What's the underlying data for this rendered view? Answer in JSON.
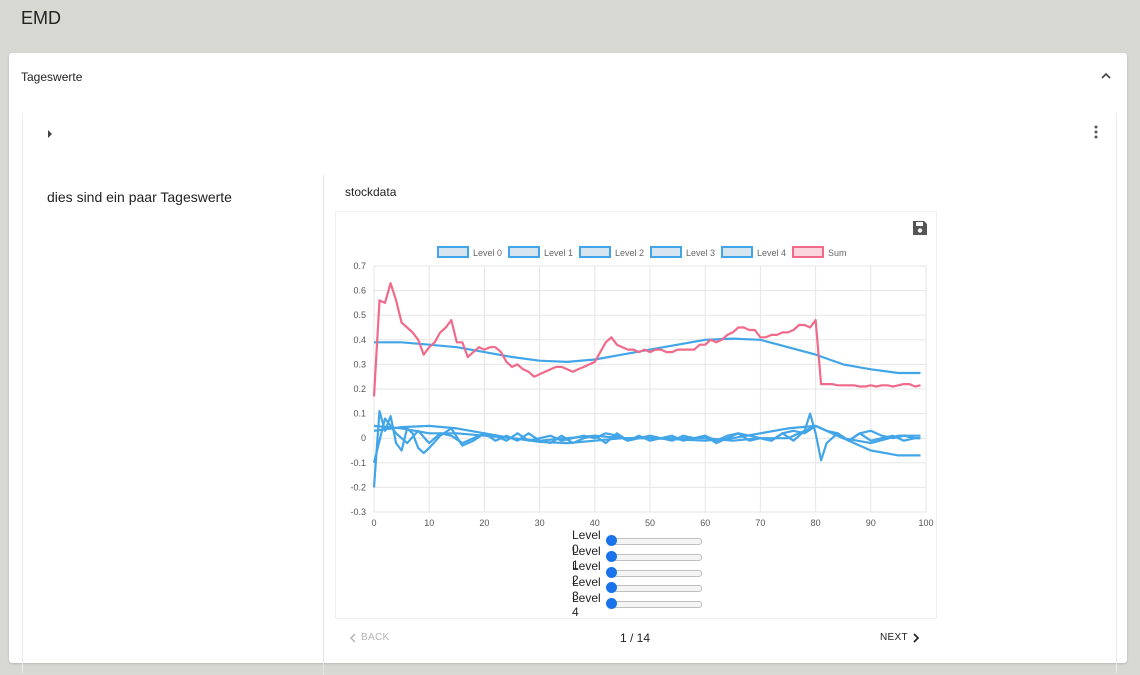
{
  "app": {
    "title": "EMD"
  },
  "panel": {
    "title": "Tageswerte"
  },
  "step": {
    "description": "dies sind ein paar Tageswerte",
    "title": "stockdata"
  },
  "chart_data": {
    "type": "line",
    "title": "",
    "xlabel": "",
    "ylabel": "",
    "xlim": [
      0,
      100
    ],
    "ylim": [
      -0.3,
      0.7
    ],
    "x_ticks": [
      "0",
      "10",
      "20",
      "30",
      "40",
      "50",
      "60",
      "70",
      "80",
      "90",
      "100"
    ],
    "y_ticks": [
      "0.7",
      "0.6",
      "0.5",
      "0.4",
      "0.3",
      "0.2",
      "0.1",
      "0",
      "-0.1",
      "-0.2",
      "-0.3"
    ],
    "grid": true,
    "legend_position": "top",
    "colors": {
      "level": "#42a5e8",
      "sum": "#f06a8a"
    },
    "series": [
      {
        "name": "Level 0",
        "x": [
          0,
          1,
          2,
          3,
          4,
          5,
          6,
          7,
          8,
          9,
          10,
          12,
          14,
          16,
          18,
          20,
          22,
          24,
          26,
          28,
          30,
          32,
          34,
          36,
          38,
          40,
          42,
          44,
          46,
          48,
          50,
          52,
          54,
          56,
          58,
          60,
          62,
          64,
          66,
          68,
          70,
          72,
          74,
          76,
          78,
          79,
          80,
          81,
          82,
          84,
          86,
          88,
          90,
          92,
          94,
          96,
          98,
          99
        ],
        "y": [
          -0.2,
          0.11,
          0.03,
          0.09,
          -0.02,
          -0.05,
          0.04,
          0.02,
          -0.04,
          -0.06,
          -0.04,
          0.01,
          0.04,
          -0.03,
          -0.01,
          0.02,
          -0.01,
          0.01,
          -0.01,
          0.02,
          -0.01,
          -0.02,
          0.01,
          -0.02,
          0.0,
          0.01,
          -0.02,
          0.02,
          -0.01,
          0.01,
          -0.01,
          0.0,
          0.01,
          -0.01,
          0.0,
          0.01,
          -0.02,
          0.0,
          0.02,
          -0.01,
          0.0,
          -0.01,
          0.02,
          -0.01,
          0.03,
          0.1,
          0.02,
          -0.09,
          -0.02,
          0.02,
          -0.01,
          0.02,
          -0.01,
          0.0,
          0.01,
          -0.01,
          0.0,
          0.0
        ]
      },
      {
        "name": "Level 1",
        "x": [
          0,
          2,
          4,
          6,
          8,
          10,
          12,
          14,
          16,
          18,
          20,
          22,
          24,
          26,
          28,
          30,
          32,
          34,
          36,
          38,
          40,
          42,
          44,
          46,
          48,
          50,
          52,
          54,
          56,
          58,
          60,
          62,
          64,
          66,
          68,
          70,
          72,
          74,
          76,
          78,
          80,
          82,
          84,
          86,
          88,
          90,
          92,
          94,
          96,
          98,
          99
        ],
        "y": [
          -0.1,
          0.08,
          0.02,
          -0.02,
          0.03,
          -0.02,
          0.02,
          0.01,
          -0.02,
          0.0,
          0.02,
          0.01,
          -0.01,
          0.02,
          -0.01,
          0.0,
          0.01,
          -0.01,
          0.0,
          0.01,
          0.0,
          0.02,
          0.01,
          -0.01,
          0.0,
          0.01,
          0.0,
          -0.01,
          0.01,
          0.0,
          0.01,
          -0.01,
          0.01,
          0.02,
          0.01,
          0.0,
          -0.01,
          0.02,
          0.03,
          0.02,
          0.05,
          0.03,
          0.02,
          -0.01,
          0.02,
          0.03,
          0.01,
          0.0,
          0.01,
          0.0,
          0.0
        ]
      },
      {
        "name": "Level 2",
        "x": [
          0,
          5,
          10,
          15,
          20,
          25,
          30,
          35,
          40,
          45,
          50,
          55,
          60,
          65,
          70,
          75,
          80,
          85,
          90,
          95,
          99
        ],
        "y": [
          0.05,
          0.04,
          0.02,
          0.02,
          0.01,
          0.0,
          -0.01,
          0.0,
          0.01,
          0.0,
          0.0,
          0.0,
          0.0,
          -0.01,
          0.0,
          0.0,
          0.05,
          0.0,
          -0.02,
          0.01,
          0.01
        ]
      },
      {
        "name": "Level 3",
        "x": [
          0,
          5,
          10,
          15,
          20,
          25,
          30,
          35,
          40,
          45,
          50,
          55,
          60,
          65,
          70,
          75,
          80,
          85,
          90,
          95,
          99
        ],
        "y": [
          0.03,
          0.045,
          0.05,
          0.04,
          0.02,
          0.0,
          -0.015,
          -0.02,
          -0.01,
          0.0,
          0.0,
          -0.005,
          -0.01,
          0.0,
          0.02,
          0.04,
          0.05,
          0.0,
          -0.05,
          -0.07,
          -0.07
        ]
      },
      {
        "name": "Level 4",
        "x": [
          0,
          5,
          10,
          15,
          20,
          25,
          30,
          35,
          40,
          45,
          50,
          55,
          60,
          65,
          70,
          75,
          80,
          85,
          90,
          95,
          99
        ],
        "y": [
          0.39,
          0.39,
          0.38,
          0.37,
          0.35,
          0.33,
          0.315,
          0.31,
          0.32,
          0.34,
          0.36,
          0.38,
          0.4,
          0.405,
          0.4,
          0.37,
          0.34,
          0.3,
          0.28,
          0.265,
          0.265
        ]
      },
      {
        "name": "Sum",
        "x": [
          0,
          1,
          2,
          3,
          4,
          5,
          6,
          7,
          8,
          9,
          10,
          11,
          12,
          13,
          14,
          15,
          16,
          17,
          18,
          19,
          20,
          21,
          22,
          23,
          24,
          25,
          26,
          27,
          28,
          29,
          30,
          31,
          32,
          33,
          34,
          35,
          36,
          37,
          38,
          39,
          40,
          41,
          42,
          43,
          44,
          45,
          46,
          47,
          48,
          49,
          50,
          51,
          52,
          53,
          54,
          55,
          56,
          57,
          58,
          59,
          60,
          61,
          62,
          63,
          64,
          65,
          66,
          67,
          68,
          69,
          70,
          71,
          72,
          73,
          74,
          75,
          76,
          77,
          78,
          79,
          80,
          81,
          82,
          83,
          84,
          85,
          86,
          87,
          88,
          89,
          90,
          91,
          92,
          93,
          94,
          95,
          96,
          97,
          98,
          99
        ],
        "y": [
          0.17,
          0.56,
          0.55,
          0.63,
          0.56,
          0.47,
          0.45,
          0.43,
          0.4,
          0.34,
          0.37,
          0.39,
          0.43,
          0.45,
          0.48,
          0.39,
          0.39,
          0.33,
          0.35,
          0.37,
          0.36,
          0.37,
          0.37,
          0.35,
          0.31,
          0.29,
          0.3,
          0.28,
          0.27,
          0.25,
          0.26,
          0.27,
          0.28,
          0.29,
          0.29,
          0.28,
          0.27,
          0.28,
          0.29,
          0.3,
          0.31,
          0.35,
          0.39,
          0.41,
          0.38,
          0.37,
          0.36,
          0.36,
          0.35,
          0.36,
          0.35,
          0.36,
          0.36,
          0.35,
          0.35,
          0.36,
          0.36,
          0.36,
          0.36,
          0.38,
          0.38,
          0.4,
          0.39,
          0.4,
          0.42,
          0.43,
          0.45,
          0.45,
          0.44,
          0.44,
          0.41,
          0.41,
          0.42,
          0.42,
          0.43,
          0.43,
          0.44,
          0.46,
          0.46,
          0.45,
          0.48,
          0.22,
          0.22,
          0.22,
          0.215,
          0.215,
          0.215,
          0.215,
          0.21,
          0.21,
          0.215,
          0.21,
          0.215,
          0.215,
          0.21,
          0.215,
          0.22,
          0.22,
          0.21,
          0.215
        ]
      }
    ]
  },
  "sliders": [
    {
      "label": "Level 0",
      "value": 0
    },
    {
      "label": "Level 1",
      "value": 0
    },
    {
      "label": "Level 2",
      "value": 0
    },
    {
      "label": "Level 3",
      "value": 0
    },
    {
      "label": "Level 4",
      "value": 0
    }
  ],
  "nav": {
    "back_label": "BACK",
    "next_label": "NEXT",
    "page_indicator": "1 / 14"
  }
}
